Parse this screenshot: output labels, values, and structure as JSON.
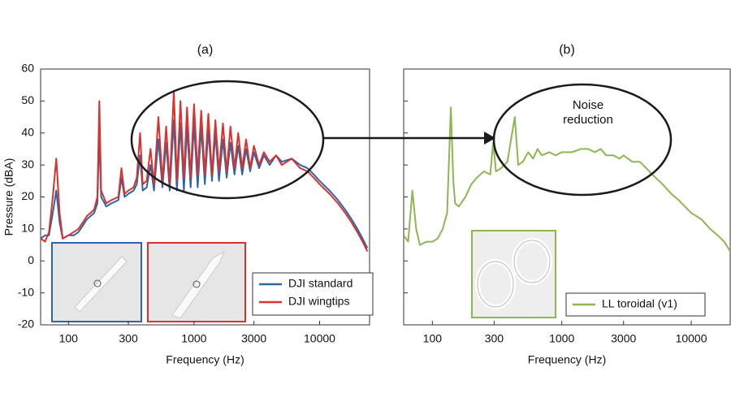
{
  "chart_data": [
    {
      "type": "line",
      "title": "(a)",
      "x_label": "Frequency (Hz)",
      "y_label": "Pressure (dBA)",
      "log_x": true,
      "xlim": [
        60,
        25000
      ],
      "ylim": [
        -20,
        60
      ],
      "xticks": [
        100,
        300,
        1000,
        3000,
        10000
      ],
      "yticks": [
        -20,
        -10,
        0,
        10,
        20,
        30,
        40,
        50,
        60
      ],
      "legend": "lower right",
      "x": [
        60,
        65,
        70,
        75,
        80,
        85,
        90,
        100,
        110,
        120,
        130,
        140,
        150,
        160,
        170,
        176,
        182,
        200,
        220,
        250,
        264,
        280,
        300,
        330,
        350,
        372,
        390,
        420,
        450,
        480,
        520,
        560,
        600,
        640,
        690,
        730,
        780,
        830,
        880,
        940,
        1000,
        1070,
        1140,
        1220,
        1300,
        1390,
        1480,
        1580,
        1700,
        1820,
        1950,
        2100,
        2250,
        2420,
        2600,
        2800,
        3000,
        3300,
        3600,
        4000,
        4500,
        5000,
        6000,
        7000,
        8000,
        9000,
        10000,
        12000,
        14000,
        16000,
        18000,
        20000,
        22000,
        24000
      ],
      "series": [
        {
          "name": "DJI standard",
          "color": "#2b66a8",
          "values": [
            7,
            8,
            8,
            15,
            22,
            12,
            7,
            8,
            8,
            9,
            11,
            13,
            14,
            15,
            18,
            40,
            20,
            17,
            18,
            19,
            26,
            20,
            21,
            22,
            24,
            33,
            22,
            23,
            30,
            22,
            38,
            23,
            37,
            22,
            44,
            22,
            43,
            22,
            42,
            23,
            43,
            23,
            42,
            24,
            41,
            25,
            40,
            25,
            38,
            26,
            37,
            27,
            36,
            27,
            35,
            28,
            34,
            29,
            33,
            30,
            33,
            31,
            32,
            30,
            29,
            27,
            25,
            22,
            19,
            16,
            13,
            10,
            7,
            4
          ]
        },
        {
          "name": "DJI wingtips",
          "color": "#d9322e",
          "values": [
            7,
            6,
            9,
            20,
            32,
            15,
            7,
            8,
            9,
            10,
            12,
            14,
            15,
            16,
            20,
            50,
            22,
            18,
            19,
            20,
            29,
            21,
            22,
            23,
            26,
            40,
            24,
            25,
            35,
            24,
            45,
            25,
            42,
            24,
            53,
            25,
            50,
            26,
            48,
            26,
            49,
            27,
            47,
            27,
            46,
            27,
            44,
            28,
            43,
            28,
            42,
            29,
            40,
            29,
            38,
            29,
            36,
            30,
            34,
            31,
            33,
            30,
            32,
            29,
            28,
            26,
            24,
            21,
            18,
            15,
            12,
            9,
            6,
            3
          ]
        }
      ]
    },
    {
      "type": "line",
      "title": "(b)",
      "x_label": "Frequency (Hz)",
      "annotation": "Noise reduction",
      "log_x": true,
      "xlim": [
        60,
        20000
      ],
      "ylim": [
        -20,
        60
      ],
      "xticks": [
        100,
        300,
        1000,
        3000,
        10000
      ],
      "yticks": [
        -20,
        -10,
        0,
        10,
        20,
        30,
        40,
        50,
        60
      ],
      "legend": "lower right",
      "x": [
        60,
        65,
        70,
        75,
        80,
        90,
        100,
        110,
        120,
        130,
        139,
        145,
        150,
        160,
        180,
        200,
        220,
        250,
        280,
        295,
        310,
        340,
        380,
        433,
        460,
        500,
        550,
        600,
        650,
        700,
        800,
        900,
        1000,
        1200,
        1400,
        1600,
        1800,
        2000,
        2200,
        2500,
        2800,
        3000,
        3500,
        4000,
        4500,
        5000,
        6000,
        7000,
        8000,
        10000,
        12000,
        14000,
        16000,
        18000,
        20000
      ],
      "series": [
        {
          "name": "LL toroidal (v1)",
          "color": "#8db653",
          "values": [
            8,
            6,
            22,
            10,
            5,
            6,
            6,
            7,
            10,
            15,
            48,
            25,
            18,
            17,
            20,
            24,
            26,
            28,
            27,
            37,
            28,
            29,
            31,
            45,
            30,
            31,
            34,
            32,
            35,
            33,
            34,
            33,
            34,
            34,
            35,
            35,
            34,
            35,
            33,
            33,
            32,
            33,
            31,
            31,
            29,
            27,
            24,
            21,
            19,
            15,
            13,
            10,
            8,
            6,
            3
          ]
        }
      ]
    }
  ]
}
